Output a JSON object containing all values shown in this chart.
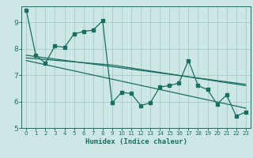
{
  "title": "",
  "xlabel": "Humidex (Indice chaleur)",
  "bg_color": "#cde8e4",
  "grid_color": "#a8ccc8",
  "line_color": "#1a6e62",
  "xlim": [
    -0.5,
    23.5
  ],
  "ylim": [
    5.0,
    9.6
  ],
  "yticks": [
    5,
    6,
    7,
    8,
    9
  ],
  "xticks": [
    0,
    1,
    2,
    3,
    4,
    5,
    6,
    7,
    8,
    9,
    10,
    11,
    12,
    13,
    14,
    15,
    16,
    17,
    18,
    19,
    20,
    21,
    22,
    23
  ],
  "series1_x": [
    0,
    1,
    2,
    3,
    4,
    5,
    6,
    7,
    8,
    9,
    10,
    11,
    12,
    13,
    14,
    15,
    16,
    17,
    18,
    19,
    20,
    21,
    22,
    23
  ],
  "series1_y": [
    9.45,
    7.75,
    7.45,
    8.1,
    8.05,
    8.55,
    8.65,
    8.7,
    9.05,
    5.95,
    6.35,
    6.3,
    5.85,
    5.95,
    6.55,
    6.6,
    6.7,
    7.55,
    6.6,
    6.45,
    5.9,
    6.25,
    5.45,
    5.6
  ],
  "series2_x": [
    0,
    23
  ],
  "series2_y": [
    7.75,
    6.65
  ],
  "series3_x": [
    0,
    23
  ],
  "series3_y": [
    7.55,
    5.75
  ],
  "series4_x": [
    0,
    9,
    23
  ],
  "series4_y": [
    7.65,
    7.38,
    6.6
  ]
}
